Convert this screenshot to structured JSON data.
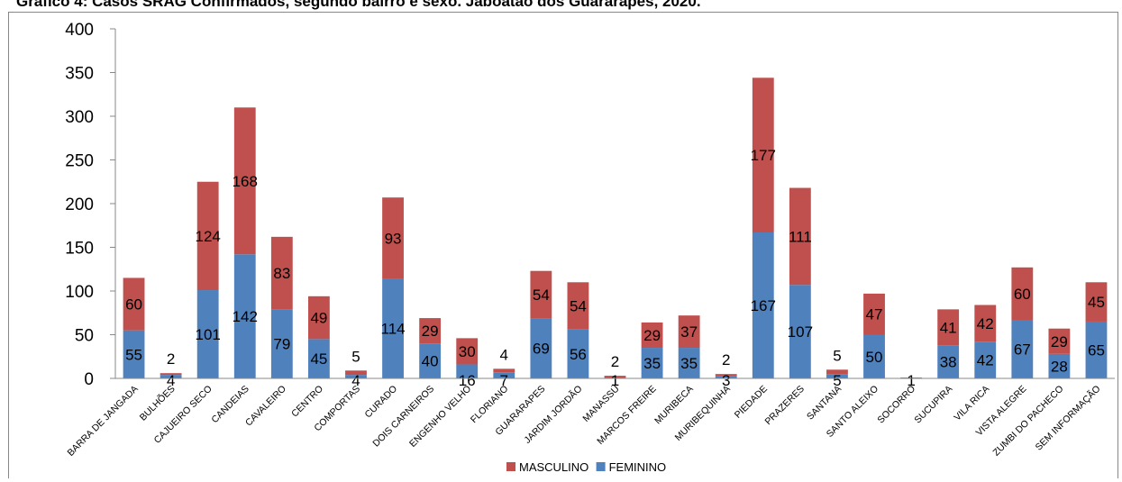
{
  "chart_data": {
    "type": "bar",
    "stacked": true,
    "title": "Gráfico 4: Casos SRAG Confirmados, segundo bairro e sexo. Jaboatão dos Guararapes, 2020.",
    "ylim": [
      0,
      400
    ],
    "yticks": [
      0,
      50,
      100,
      150,
      200,
      250,
      300,
      350,
      400
    ],
    "grid": false,
    "legend_position": "bottom",
    "categories": [
      "BARRA DE JANGADA",
      "BULHÕES",
      "CAJUEIRO SECO",
      "CANDEIAS",
      "CAVALEIRO",
      "CENTRO",
      "COMPORTAS",
      "CURADO",
      "DOIS CARNEIROS",
      "ENGENHO VELHO",
      "FLORIANO",
      "GUARARAPES",
      "JARDIM JORDÃO",
      "MANASSÚ",
      "MARCOS FREIRE",
      "MURIBECA",
      "MURIBEQUINHA",
      "PIEDADE",
      "PRAZERES",
      "SANTANA",
      "SANTO ALEIXO",
      "SOCORRO",
      "SUCUPIRA",
      "VILA RICA",
      "VISTA ALEGRE",
      "ZUMBI DO PACHECO",
      "SEM INFORMAÇÃO"
    ],
    "series": [
      {
        "name": "FEMININO",
        "color": "#4f81bd",
        "values": [
          55,
          4,
          101,
          142,
          79,
          45,
          4,
          114,
          40,
          16,
          7,
          69,
          56,
          1,
          35,
          35,
          3,
          167,
          107,
          5,
          50,
          1,
          38,
          42,
          67,
          28,
          65
        ]
      },
      {
        "name": "MASCULINO",
        "color": "#c0504d",
        "values": [
          60,
          2,
          124,
          168,
          83,
          49,
          5,
          93,
          29,
          30,
          4,
          54,
          54,
          2,
          29,
          37,
          2,
          177,
          111,
          5,
          47,
          0,
          41,
          42,
          60,
          29,
          45
        ]
      }
    ],
    "masculino_labels": [
      "60",
      "2",
      "124",
      "168",
      "83",
      "49",
      "5",
      "93",
      "29",
      "30",
      "4",
      "54",
      "54",
      "2",
      "29",
      "37",
      "2",
      "177",
      "111",
      "5",
      "47",
      "",
      "41",
      "42",
      "60",
      "29",
      "45"
    ],
    "legend": [
      {
        "name": "MASCULINO",
        "color": "#c0504d"
      },
      {
        "name": "FEMININO",
        "color": "#4f81bd"
      }
    ]
  }
}
